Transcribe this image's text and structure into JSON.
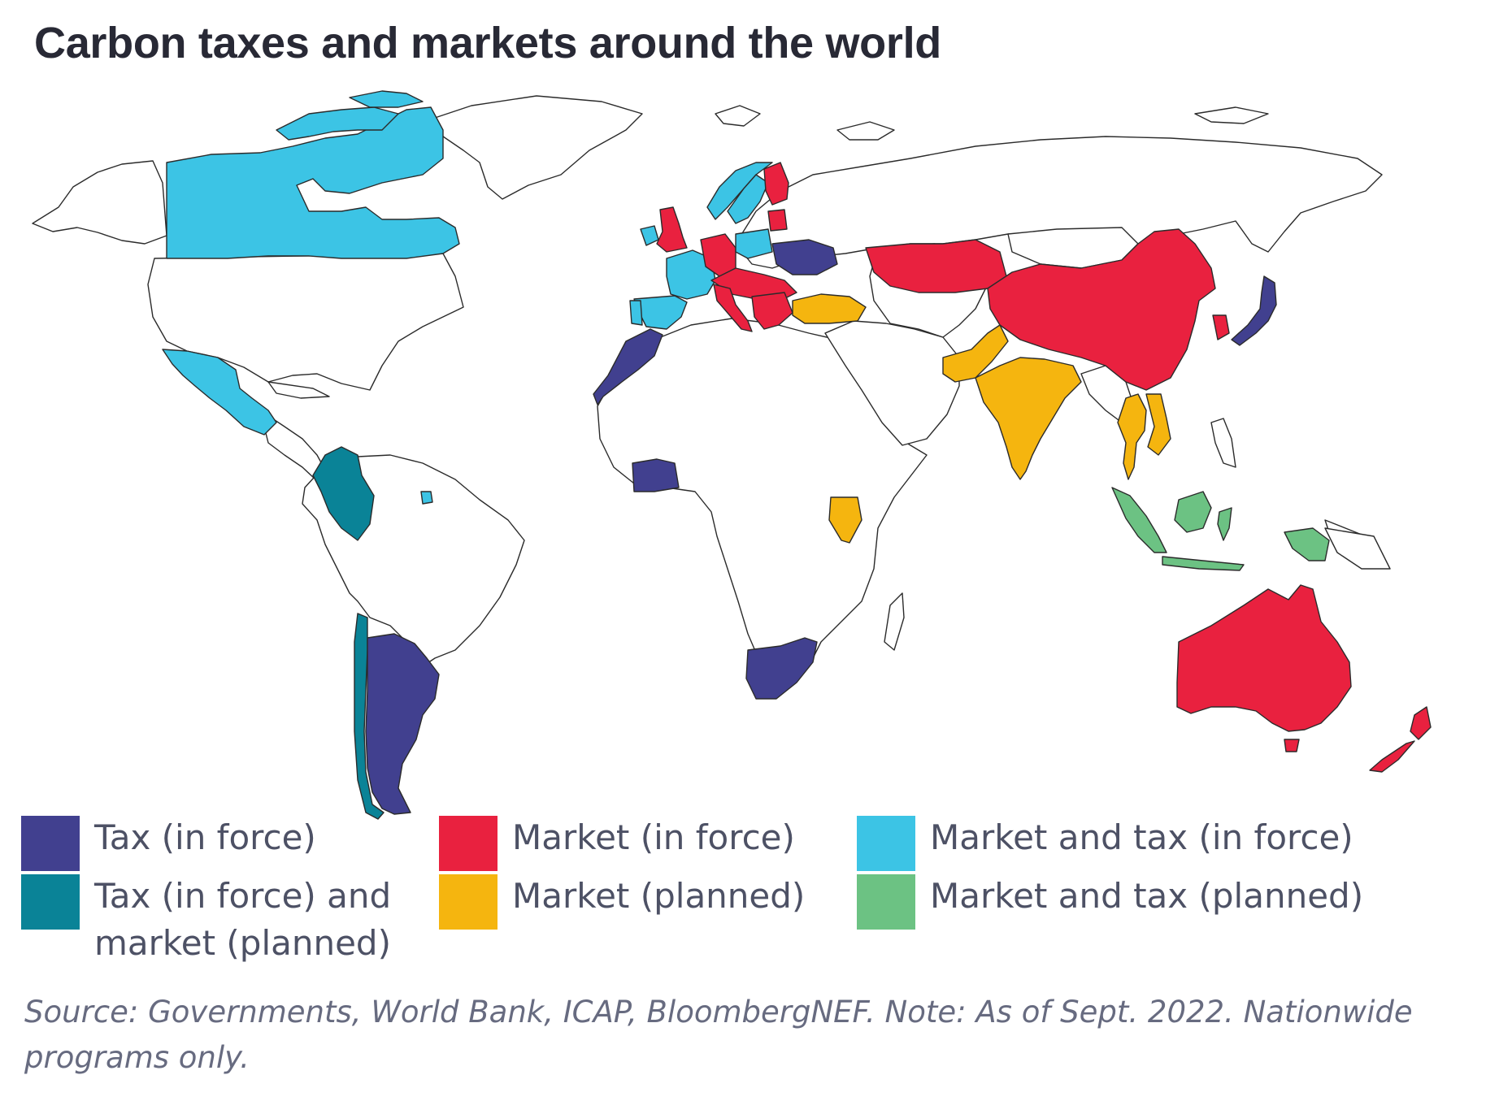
{
  "title": "Carbon taxes and markets around the world",
  "legend": [
    {
      "key": "tax",
      "label": "Tax (in force)",
      "color": "#41408f"
    },
    {
      "key": "market",
      "label": "Market (in force)",
      "color": "#e9213f"
    },
    {
      "key": "both",
      "label": "Market and tax (in force)",
      "color": "#3cc4e5"
    },
    {
      "key": "taxmp",
      "label": "Tax (in force) and\nmarket (planned)",
      "color": "#0a8397"
    },
    {
      "key": "mplan",
      "label": "Market (planned)",
      "color": "#f5b50f"
    },
    {
      "key": "bothp",
      "label": "Market and tax (planned)",
      "color": "#6cc283"
    }
  ],
  "source": "Source: Governments, World Bank, ICAP, BloombergNEF. Note: As of Sept. 2022. Nationwide programs only.",
  "map": {
    "background_land": "#ffffff",
    "countries": [
      {
        "name": "Canada",
        "category": "both"
      },
      {
        "name": "Mexico",
        "category": "both"
      },
      {
        "name": "Colombia",
        "category": "taxmp"
      },
      {
        "name": "Chile",
        "category": "taxmp"
      },
      {
        "name": "Argentina",
        "category": "tax"
      },
      {
        "name": "Trinidad and Tobago",
        "category": "both"
      },
      {
        "name": "United Kingdom",
        "category": "market"
      },
      {
        "name": "Ireland",
        "category": "both"
      },
      {
        "name": "France",
        "category": "both"
      },
      {
        "name": "Spain",
        "category": "both"
      },
      {
        "name": "Portugal",
        "category": "both"
      },
      {
        "name": "Germany",
        "category": "market"
      },
      {
        "name": "Italy",
        "category": "market"
      },
      {
        "name": "Poland",
        "category": "both"
      },
      {
        "name": "Norway",
        "category": "both"
      },
      {
        "name": "Sweden",
        "category": "both"
      },
      {
        "name": "Finland",
        "category": "market"
      },
      {
        "name": "Ukraine",
        "category": "tax"
      },
      {
        "name": "Turkey",
        "category": "mplan"
      },
      {
        "name": "Morocco",
        "category": "tax"
      },
      {
        "name": "Côte d'Ivoire",
        "category": "tax"
      },
      {
        "name": "Kenya",
        "category": "mplan"
      },
      {
        "name": "South Africa",
        "category": "tax"
      },
      {
        "name": "Kazakhstan",
        "category": "market"
      },
      {
        "name": "China",
        "category": "market"
      },
      {
        "name": "South Korea",
        "category": "market"
      },
      {
        "name": "Japan",
        "category": "tax"
      },
      {
        "name": "India",
        "category": "mplan"
      },
      {
        "name": "Pakistan",
        "category": "mplan"
      },
      {
        "name": "Thailand",
        "category": "mplan"
      },
      {
        "name": "Vietnam",
        "category": "mplan"
      },
      {
        "name": "Indonesia",
        "category": "bothp"
      },
      {
        "name": "Australia",
        "category": "market"
      },
      {
        "name": "New Zealand",
        "category": "market"
      }
    ]
  }
}
